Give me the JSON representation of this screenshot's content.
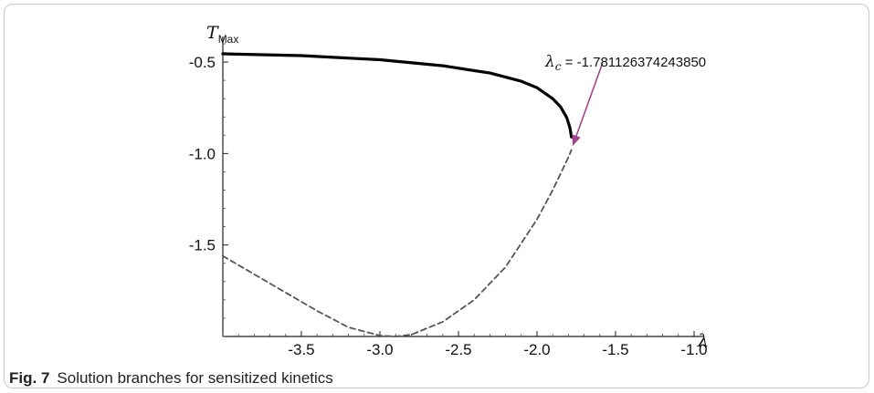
{
  "chart_data": {
    "type": "line",
    "x_axis_symbol": "λ",
    "y_axis_symbol": "T",
    "y_axis_subscript": "Max",
    "xlim": [
      -4.0,
      -1.0
    ],
    "ylim": [
      -2.0,
      -0.4
    ],
    "x_ticks": [
      -3.5,
      -3.0,
      -2.5,
      -2.0,
      -1.5,
      -1.0
    ],
    "x_tick_labels": [
      "-3.5",
      "-3.0",
      "-2.5",
      "-2.0",
      "-1.5",
      "-1.0"
    ],
    "y_ticks": [
      -0.5,
      -1.0,
      -1.5
    ],
    "y_tick_labels": [
      "-0.5",
      "-1.0",
      "-1.5"
    ],
    "grid": false,
    "series": [
      {
        "style": "solid",
        "color": "#000000",
        "x": [
          -4.0,
          -3.5,
          -3.0,
          -2.6,
          -2.3,
          -2.1,
          -2.0,
          -1.9,
          -1.85,
          -1.81,
          -1.79,
          -1.781
        ],
        "y": [
          -0.455,
          -0.465,
          -0.487,
          -0.52,
          -0.56,
          -0.605,
          -0.64,
          -0.7,
          -0.745,
          -0.805,
          -0.86,
          -0.91
        ]
      },
      {
        "style": "dashed",
        "color": "#555555",
        "x": [
          -4.0,
          -3.8,
          -3.6,
          -3.4,
          -3.2,
          -3.0,
          -2.9,
          -2.8,
          -2.6,
          -2.4,
          -2.2,
          -2.0,
          -1.9,
          -1.8,
          -1.781
        ],
        "y": [
          -1.56,
          -1.66,
          -1.76,
          -1.86,
          -1.95,
          -1.995,
          -2.0,
          -1.99,
          -1.92,
          -1.8,
          -1.62,
          -1.36,
          -1.2,
          -1.02,
          -0.98
        ]
      }
    ],
    "annotation": {
      "symbol": "λ",
      "subscript": "c",
      "text": " = -1.781126374243850",
      "point": [
        -1.781,
        -0.97
      ],
      "arrow_color": "#a0468c"
    }
  },
  "caption": {
    "label": "Fig. 7",
    "text": "Solution branches for sensitized kinetics"
  }
}
